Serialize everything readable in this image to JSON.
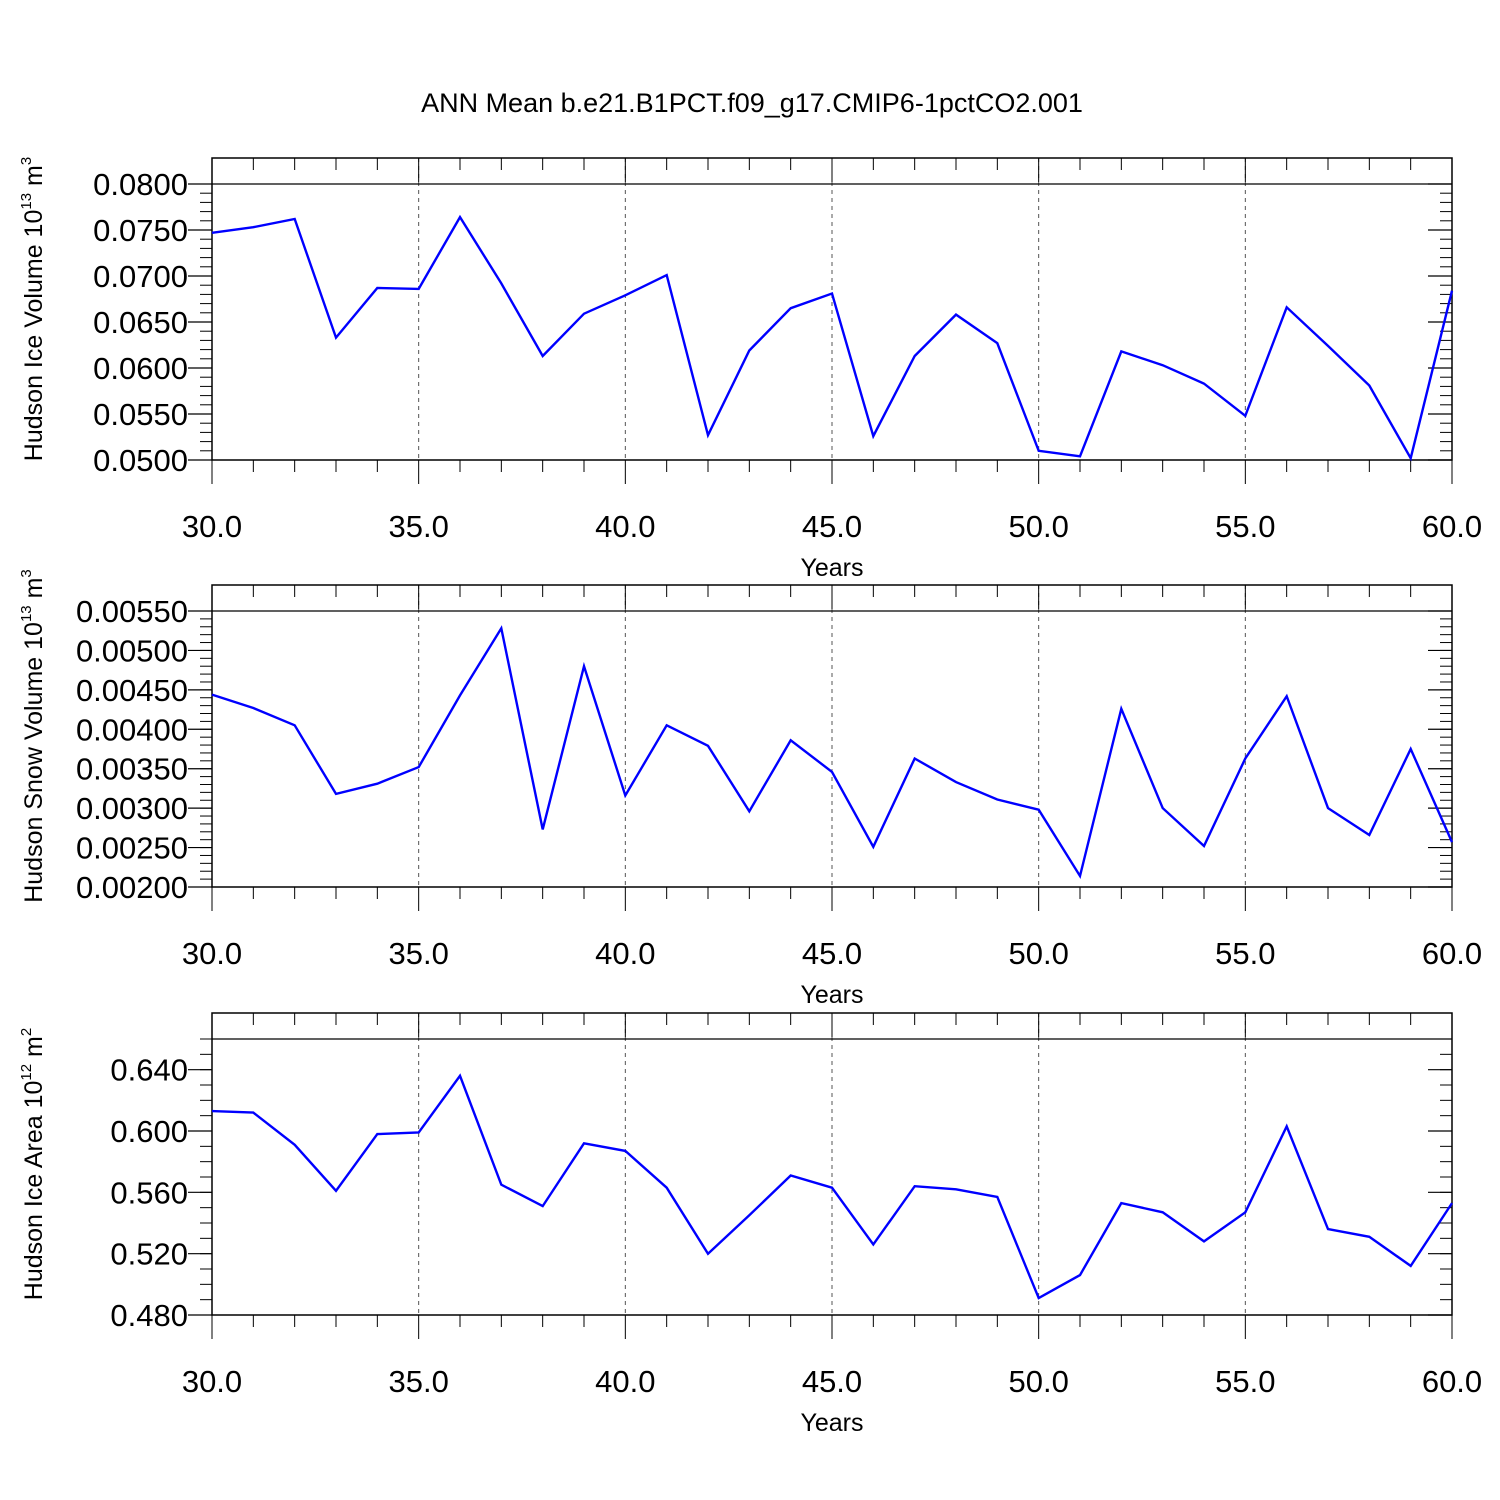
{
  "figure_title": "ANN Mean b.e21.B1PCT.f09_g17.CMIP6-1pctCO2.001",
  "colors": {
    "series": "#0000ff",
    "axis": "#000000",
    "grid": "#555555"
  },
  "chart_data": [
    {
      "type": "line",
      "title": "",
      "xlabel": "Years",
      "ylabel": {
        "text": "Hudson Ice Volume 10",
        "exponent": "13",
        "unit": "m",
        "unit_exponent": "3"
      },
      "xlim": [
        30,
        60
      ],
      "ylim": [
        0.05,
        0.08
      ],
      "xticks": [
        30,
        35,
        40,
        45,
        50,
        55,
        60
      ],
      "xtick_labels": [
        "30.0",
        "35.0",
        "40.0",
        "45.0",
        "50.0",
        "55.0",
        "60.0"
      ],
      "yticks": [
        0.05,
        0.055,
        0.06,
        0.065,
        0.07,
        0.075,
        0.08
      ],
      "ytick_labels": [
        "0.0500",
        "0.0550",
        "0.0600",
        "0.0650",
        "0.0700",
        "0.0750",
        "0.0800"
      ],
      "y_minor_step": 0.001,
      "x_minor_step": 1,
      "grid": "vertical dashed at major x ticks",
      "x": [
        30,
        31,
        32,
        33,
        34,
        35,
        36,
        37,
        38,
        39,
        40,
        41,
        42,
        43,
        44,
        45,
        46,
        47,
        48,
        49,
        50,
        51,
        52,
        53,
        54,
        55,
        56,
        57,
        58,
        59,
        60
      ],
      "series": [
        {
          "values": [
            0.0747,
            0.0753,
            0.0762,
            0.0633,
            0.0687,
            0.0686,
            0.0764,
            0.0692,
            0.0613,
            0.0659,
            0.0679,
            0.0701,
            0.0527,
            0.0619,
            0.0665,
            0.0681,
            0.0526,
            0.0613,
            0.0658,
            0.0627,
            0.051,
            0.0504,
            0.0618,
            0.0603,
            0.0583,
            0.0548,
            0.0666,
            0.0624,
            0.0581,
            0.0502,
            0.0684
          ]
        }
      ]
    },
    {
      "type": "line",
      "title": "",
      "xlabel": "Years",
      "ylabel": {
        "text": "Hudson Snow Volume 10",
        "exponent": "13",
        "unit": "m",
        "unit_exponent": "3"
      },
      "xlim": [
        30,
        60
      ],
      "ylim": [
        0.002,
        0.0055
      ],
      "xticks": [
        30,
        35,
        40,
        45,
        50,
        55,
        60
      ],
      "xtick_labels": [
        "30.0",
        "35.0",
        "40.0",
        "45.0",
        "50.0",
        "55.0",
        "60.0"
      ],
      "yticks": [
        0.002,
        0.0025,
        0.003,
        0.0035,
        0.004,
        0.0045,
        0.005,
        0.0055
      ],
      "ytick_labels": [
        "0.00200",
        "0.00250",
        "0.00300",
        "0.00350",
        "0.00400",
        "0.00450",
        "0.00500",
        "0.00550"
      ],
      "y_minor_step": 0.0001,
      "x_minor_step": 1,
      "grid": "vertical dashed at major x ticks",
      "x": [
        30,
        31,
        32,
        33,
        34,
        35,
        36,
        37,
        38,
        39,
        40,
        41,
        42,
        43,
        44,
        45,
        46,
        47,
        48,
        49,
        50,
        51,
        52,
        53,
        54,
        55,
        56,
        57,
        58,
        59,
        60
      ],
      "series": [
        {
          "values": [
            0.00444,
            0.00427,
            0.00405,
            0.00318,
            0.00331,
            0.00352,
            0.00443,
            0.00528,
            0.00273,
            0.0048,
            0.00316,
            0.00405,
            0.00379,
            0.00296,
            0.00386,
            0.00346,
            0.00251,
            0.00363,
            0.00333,
            0.00311,
            0.00298,
            0.00214,
            0.00426,
            0.003,
            0.00252,
            0.00363,
            0.00442,
            0.003,
            0.00266,
            0.00375,
            0.00257
          ]
        }
      ]
    },
    {
      "type": "line",
      "title": "",
      "xlabel": "Years",
      "ylabel": {
        "text": "Hudson Ice Area 10",
        "exponent": "12",
        "unit": "m",
        "unit_exponent": "2"
      },
      "xlim": [
        30,
        60
      ],
      "ylim": [
        0.48,
        0.66
      ],
      "xticks": [
        30,
        35,
        40,
        45,
        50,
        55,
        60
      ],
      "xtick_labels": [
        "30.0",
        "35.0",
        "40.0",
        "45.0",
        "50.0",
        "55.0",
        "60.0"
      ],
      "yticks": [
        0.48,
        0.52,
        0.56,
        0.6,
        0.64
      ],
      "ytick_labels": [
        "0.480",
        "0.520",
        "0.560",
        "0.600",
        "0.640"
      ],
      "y_minor_step": 0.01,
      "x_minor_step": 1,
      "grid": "vertical dashed at major x ticks",
      "x": [
        30,
        31,
        32,
        33,
        34,
        35,
        36,
        37,
        38,
        39,
        40,
        41,
        42,
        43,
        44,
        45,
        46,
        47,
        48,
        49,
        50,
        51,
        52,
        53,
        54,
        55,
        56,
        57,
        58,
        59,
        60
      ],
      "series": [
        {
          "values": [
            0.613,
            0.612,
            0.591,
            0.561,
            0.598,
            0.599,
            0.636,
            0.565,
            0.551,
            0.592,
            0.587,
            0.563,
            0.52,
            0.545,
            0.571,
            0.563,
            0.526,
            0.564,
            0.562,
            0.557,
            0.491,
            0.506,
            0.553,
            0.547,
            0.528,
            0.547,
            0.603,
            0.536,
            0.531,
            0.512,
            0.553
          ]
        }
      ]
    }
  ]
}
